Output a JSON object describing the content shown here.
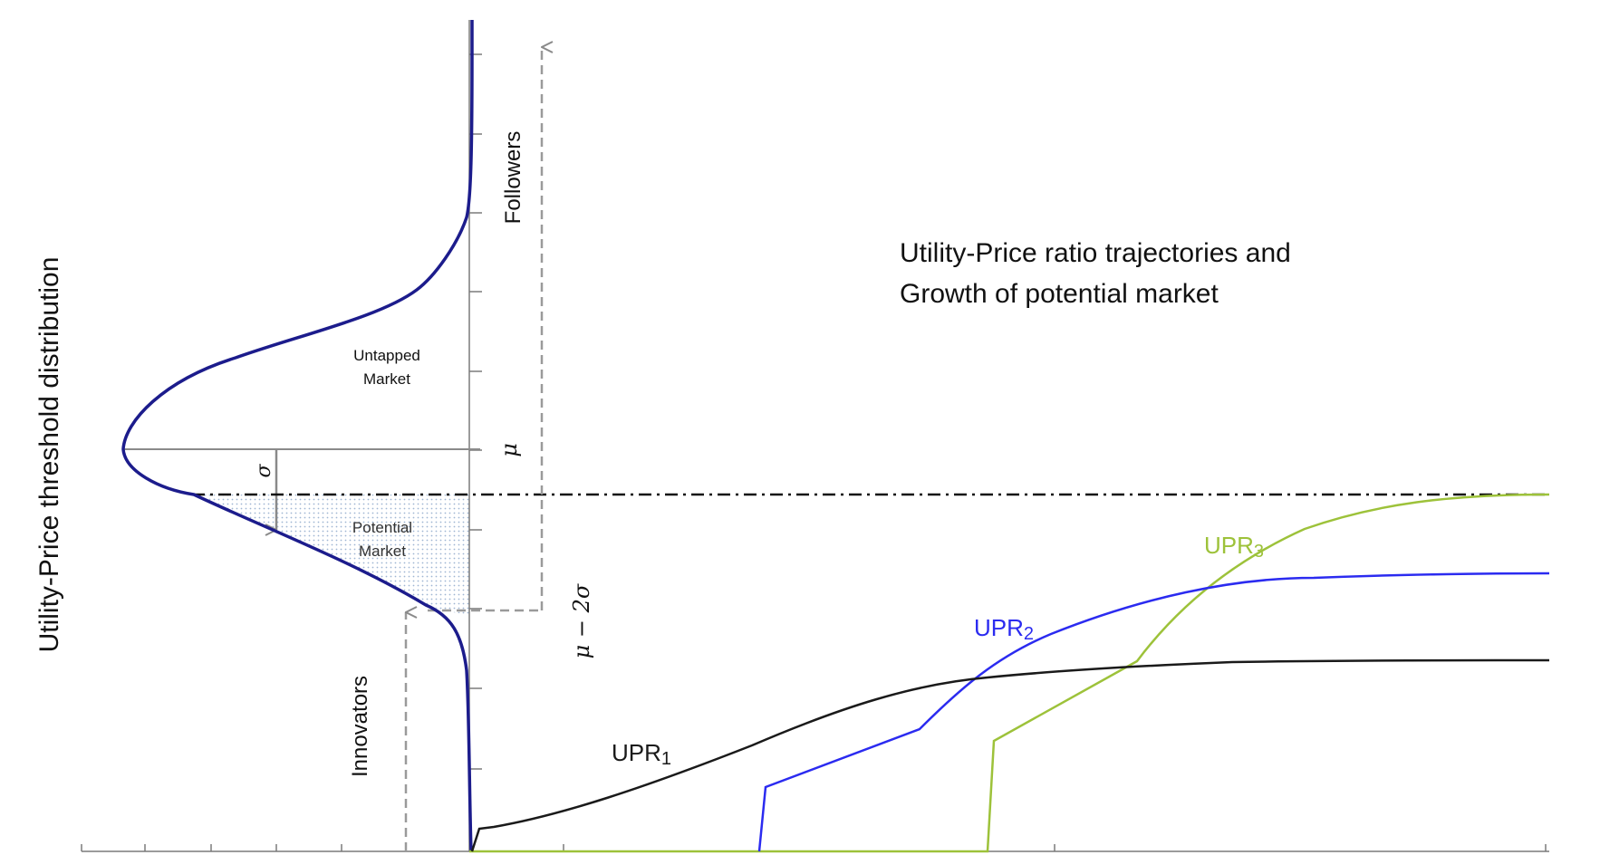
{
  "ylabel": "Utility-Price threshold distribution",
  "title_line1": "Utility-Price ratio trajectories and",
  "title_line2": "Growth of potential market",
  "labels": {
    "followers": "Followers",
    "innovators": "Innovators",
    "untapped_line1": "Untapped",
    "untapped_line2": "Market",
    "potential_line1": "Potential",
    "potential_line2": "Market",
    "mu": "μ",
    "sigma": "σ",
    "mu_minus_2sigma": "μ − 2σ"
  },
  "curves": [
    {
      "id": "upr1",
      "label_main": "UPR",
      "label_sub": "1",
      "color": "#1a1a1a"
    },
    {
      "id": "upr2",
      "label_main": "UPR",
      "label_sub": "2",
      "color": "#2b2bf0"
    },
    {
      "id": "upr3",
      "label_main": "UPR",
      "label_sub": "3",
      "color": "#9dc23a"
    }
  ],
  "colors": {
    "distribution": "#1c1c8c",
    "guide": "#8a8a8a",
    "dashed": "#9a9a9a",
    "shade": "#b8cbe0"
  }
}
